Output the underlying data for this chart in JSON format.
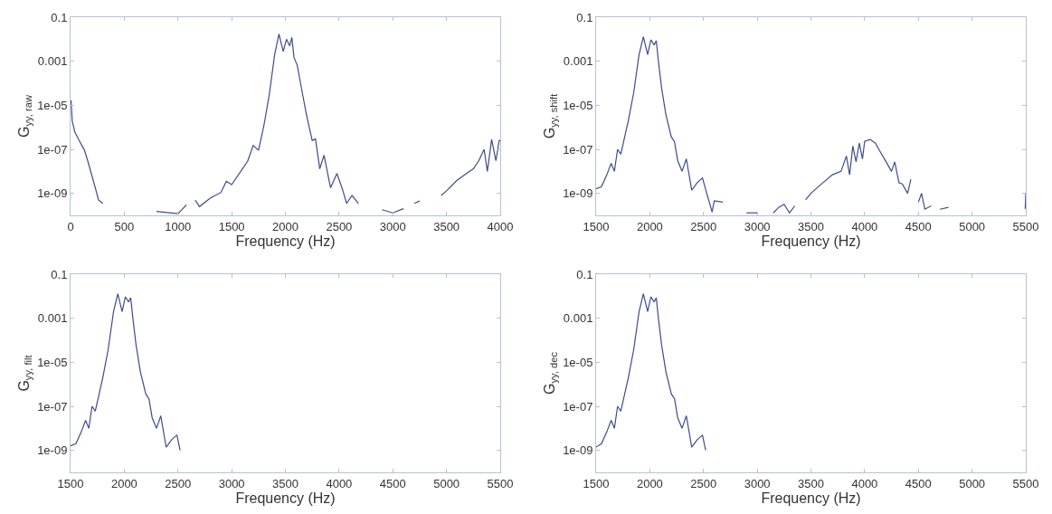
{
  "chart_data": [
    {
      "type": "line",
      "xlabel": "Frequency (Hz)",
      "ylabel": "G$_{yy, raw}$",
      "log": "y",
      "grid": false,
      "marker": "none",
      "line_style": "solid",
      "xlim": [
        0,
        4000
      ],
      "xticks": [
        0,
        500,
        1000,
        1500,
        2000,
        2500,
        3000,
        3500,
        4000
      ],
      "ylim": [
        1e-10,
        0.1
      ],
      "yticks": [
        {
          "value": 1e-09,
          "label": "1e-09"
        },
        {
          "value": 1e-07,
          "label": "1e-07"
        },
        {
          "value": 1e-05,
          "label": "1e-05"
        },
        {
          "value": 0.001,
          "label": "0.001"
        },
        {
          "value": 0.1,
          "label": "0.1"
        }
      ],
      "series": [
        {
          "color": "#3f4b8c",
          "x": [
            0,
            5,
            15,
            40,
            80,
            130,
            160,
            200,
            230,
            260,
            300,
            350,
            800,
            1000,
            1080,
            1120,
            1160,
            1200,
            1300,
            1400,
            1450,
            1500,
            1600,
            1650,
            1700,
            1750,
            1800,
            1850,
            1900,
            1940,
            1980,
            2010,
            2040,
            2060,
            2080,
            2110,
            2150,
            2200,
            2250,
            2280,
            2320,
            2360,
            2420,
            2480,
            2530,
            2570,
            2620,
            2680,
            2720,
            2850,
            2900,
            3000,
            3100,
            3150,
            3200,
            3250,
            3300,
            3450,
            3500,
            3600,
            3700,
            3750,
            3800,
            3850,
            3880,
            3920,
            3960,
            3990,
            4000
          ],
          "values": [
            1.6e-05,
            1.6e-05,
            2e-06,
            6e-07,
            2.5e-07,
            9e-08,
            3e-08,
            6e-09,
            1.8e-09,
            5e-10,
            3.5e-10,
            null,
            1.5e-10,
            1.2e-10,
            3e-10,
            null,
            5e-10,
            2.5e-10,
            6e-10,
            1.1e-09,
            3.5e-09,
            2.5e-09,
            1.3e-08,
            3e-08,
            1.5e-07,
            9e-08,
            1.2e-06,
            3e-05,
            0.002,
            0.017,
            0.0028,
            0.01,
            0.005,
            0.012,
            0.0015,
            0.00066,
            5.8e-05,
            3e-06,
            2.5e-07,
            3e-07,
            1.3e-08,
            5.4e-08,
            1.8e-09,
            8e-09,
            1.6e-09,
            3.5e-10,
            8e-10,
            3.5e-10,
            null,
            null,
            1.8e-10,
            1.3e-10,
            2e-10,
            null,
            3.5e-10,
            4.5e-10,
            null,
            8e-10,
            1.3e-09,
            4e-09,
            9e-09,
            1.3e-08,
            3e-08,
            1e-07,
            1e-08,
            2.8e-07,
            3e-08,
            2.5e-07,
            2.5e-07
          ]
        }
      ]
    },
    {
      "type": "line",
      "xlabel": "Frequency (Hz)",
      "ylabel": "G$_{yy, shift}$",
      "log": "y",
      "grid": false,
      "marker": "none",
      "line_style": "solid",
      "xlim": [
        1500,
        5500
      ],
      "xticks": [
        1500,
        2000,
        2500,
        3000,
        3500,
        4000,
        4500,
        5000,
        5500
      ],
      "ylim": [
        1e-10,
        0.1
      ],
      "yticks": [
        {
          "value": 1e-09,
          "label": "1e-09"
        },
        {
          "value": 1e-07,
          "label": "1e-07"
        },
        {
          "value": 1e-05,
          "label": "1e-05"
        },
        {
          "value": 0.001,
          "label": "0.001"
        },
        {
          "value": 0.1,
          "label": "0.1"
        }
      ],
      "series": [
        {
          "color": "#3f4b8c",
          "x": [
            1500,
            1550,
            1600,
            1640,
            1670,
            1700,
            1730,
            1800,
            1850,
            1900,
            1940,
            1980,
            2010,
            2040,
            2060,
            2080,
            2110,
            2150,
            2200,
            2230,
            2260,
            2300,
            2340,
            2390,
            2440,
            2490,
            2530,
            2580,
            2600,
            2680,
            2740,
            2870,
            2900,
            3000,
            3100,
            3150,
            3200,
            3250,
            3300,
            3350,
            3420,
            3450,
            3500,
            3600,
            3700,
            3780,
            3830,
            3860,
            3890,
            3920,
            3950,
            3980,
            4000,
            4050,
            4100,
            4150,
            4200,
            4250,
            4280,
            4320,
            4350,
            4400,
            4430,
            4460,
            4500,
            4530,
            4560,
            4620,
            4650,
            4700,
            4780,
            4800,
            5495,
            5500
          ],
          "values": [
            1.6e-09,
            2e-09,
            7e-09,
            2.3e-08,
            1e-08,
            1e-07,
            6e-08,
            2e-06,
            3.7e-05,
            0.002,
            0.013,
            0.002,
            0.0094,
            0.0055,
            0.0085,
            0.001,
            6e-05,
            3.7e-06,
            3.7e-07,
            2.2e-07,
            3e-08,
            1e-08,
            3.7e-08,
            1.4e-09,
            3e-09,
            5e-09,
            1e-09,
            1.4e-10,
            4.6e-10,
            4e-10,
            null,
            null,
            1.3e-10,
            1.3e-10,
            null,
            1.3e-10,
            2.3e-10,
            3.2e-10,
            1.3e-10,
            2.7e-10,
            null,
            5e-10,
            1e-09,
            2.7e-09,
            7e-09,
            1e-08,
            5e-08,
            7e-09,
            1.4e-07,
            2.7e-08,
            1.9e-07,
            3.7e-08,
            2.3e-07,
            2.8e-07,
            1.9e-07,
            7e-08,
            2.7e-08,
            1e-08,
            2.7e-08,
            3e-09,
            2.7e-09,
            1e-09,
            4.4e-09,
            null,
            4e-10,
            1e-09,
            1.9e-10,
            2.7e-10,
            null,
            1.9e-10,
            2.3e-10,
            null,
            2e-10,
            1e-09
          ]
        }
      ]
    },
    {
      "type": "line",
      "xlabel": "Frequency (Hz)",
      "ylabel": "G$_{yy, filt}$",
      "log": "y",
      "grid": false,
      "marker": "none",
      "line_style": "solid",
      "xlim": [
        1500,
        5500
      ],
      "xticks": [
        1500,
        2000,
        2500,
        3000,
        3500,
        4000,
        4500,
        5000,
        5500
      ],
      "ylim": [
        1e-10,
        0.1
      ],
      "yticks": [
        {
          "value": 1e-09,
          "label": "1e-09"
        },
        {
          "value": 1e-07,
          "label": "1e-07"
        },
        {
          "value": 1e-05,
          "label": "1e-05"
        },
        {
          "value": 0.001,
          "label": "0.001"
        },
        {
          "value": 0.1,
          "label": "0.1"
        }
      ],
      "series": [
        {
          "color": "#3f4b8c",
          "x": [
            1500,
            1550,
            1600,
            1640,
            1670,
            1700,
            1730,
            1800,
            1850,
            1900,
            1940,
            1980,
            2010,
            2040,
            2060,
            2080,
            2110,
            2150,
            2200,
            2230,
            2260,
            2300,
            2340,
            2390,
            2440,
            2490,
            2520
          ],
          "values": [
            1.6e-09,
            2e-09,
            7e-09,
            2.3e-08,
            1e-08,
            1e-07,
            6e-08,
            2e-06,
            3.7e-05,
            0.002,
            0.013,
            0.002,
            0.0094,
            0.0055,
            0.0085,
            0.001,
            6e-05,
            3.7e-06,
            3.7e-07,
            2.2e-07,
            3e-08,
            1e-08,
            3.7e-08,
            1.4e-09,
            3e-09,
            5e-09,
            1e-09
          ]
        }
      ]
    },
    {
      "type": "line",
      "xlabel": "Frequency (Hz)",
      "ylabel": "G$_{yy, dec}$",
      "log": "y",
      "grid": false,
      "marker": "none",
      "line_style": "solid",
      "xlim": [
        1500,
        5500
      ],
      "xticks": [
        1500,
        2000,
        2500,
        3000,
        3500,
        4000,
        4500,
        5000,
        5500
      ],
      "ylim": [
        1e-10,
        0.1
      ],
      "yticks": [
        {
          "value": 1e-09,
          "label": "1e-09"
        },
        {
          "value": 1e-07,
          "label": "1e-07"
        },
        {
          "value": 1e-05,
          "label": "1e-05"
        },
        {
          "value": 0.001,
          "label": "0.001"
        },
        {
          "value": 0.1,
          "label": "0.1"
        }
      ],
      "series": [
        {
          "color": "#3f4b8c",
          "x": [
            1500,
            1550,
            1600,
            1640,
            1670,
            1700,
            1730,
            1800,
            1850,
            1900,
            1940,
            1980,
            2010,
            2040,
            2060,
            2080,
            2110,
            2150,
            2200,
            2230,
            2260,
            2300,
            2340,
            2390,
            2440,
            2490,
            2520
          ],
          "values": [
            1.4e-09,
            2e-09,
            7e-09,
            2.3e-08,
            1e-08,
            1e-07,
            6e-08,
            2e-06,
            3.7e-05,
            0.002,
            0.013,
            0.002,
            0.0094,
            0.0055,
            0.0085,
            0.001,
            6e-05,
            3.7e-06,
            3.7e-07,
            2.2e-07,
            3e-08,
            1e-08,
            3.7e-08,
            1.4e-09,
            3e-09,
            5e-09,
            1e-09
          ]
        }
      ]
    }
  ]
}
